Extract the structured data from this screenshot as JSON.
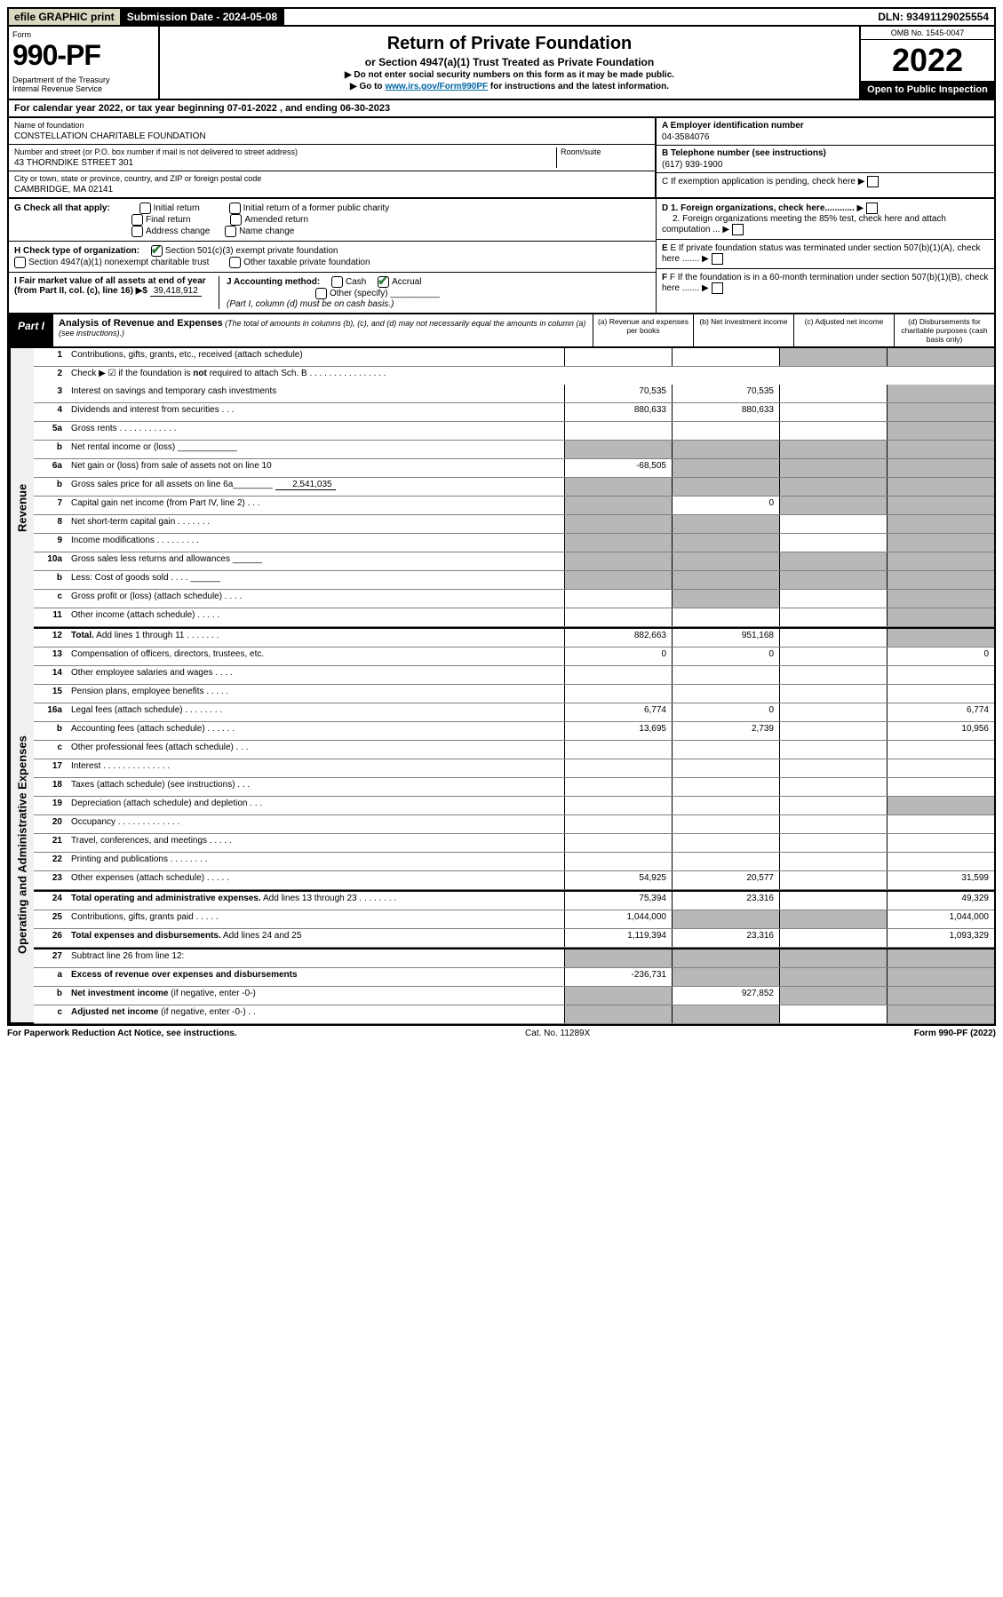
{
  "top": {
    "efile": "efile GRAPHIC print",
    "submission_label": "Submission Date - 2024-05-08",
    "dln": "DLN: 93491129025554"
  },
  "header": {
    "form_word": "Form",
    "form_number": "990-PF",
    "dept": "Department of the Treasury\nInternal Revenue Service",
    "title": "Return of Private Foundation",
    "subtitle": "or Section 4947(a)(1) Trust Treated as Private Foundation",
    "note1": "▶ Do not enter social security numbers on this form as it may be made public.",
    "note2_pre": "▶ Go to ",
    "note2_link": "www.irs.gov/Form990PF",
    "note2_post": " for instructions and the latest information.",
    "omb": "OMB No. 1545-0047",
    "year": "2022",
    "open": "Open to Public Inspection"
  },
  "cal_year": "For calendar year 2022, or tax year beginning 07-01-2022               , and ending 06-30-2023",
  "name_block": {
    "name_label": "Name of foundation",
    "name_val": "CONSTELLATION CHARITABLE FOUNDATION",
    "addr_label": "Number and street (or P.O. box number if mail is not delivered to street address)",
    "addr_val": "43 THORNDIKE STREET 301",
    "room_label": "Room/suite",
    "city_label": "City or town, state or province, country, and ZIP or foreign postal code",
    "city_val": "CAMBRIDGE, MA  02141"
  },
  "right_block": {
    "a_label": "A Employer identification number",
    "a_val": "04-3584076",
    "b_label": "B Telephone number (see instructions)",
    "b_val": "(617) 939-1900",
    "c_label": "C If exemption application is pending, check here",
    "d1": "D 1. Foreign organizations, check here............",
    "d2": "2. Foreign organizations meeting the 85% test, check here and attach computation ...",
    "e": "E If private foundation status was terminated under section 507(b)(1)(A), check here .......",
    "f": "F If the foundation is in a 60-month termination under section 507(b)(1)(B), check here .......   ▶"
  },
  "checks": {
    "G": "G Check all that apply:",
    "g_opts": [
      "Initial return",
      "Final return",
      "Address change",
      "Initial return of a former public charity",
      "Amended return",
      "Name change"
    ],
    "H": "H Check type of organization:",
    "h1": "Section 501(c)(3) exempt private foundation",
    "h2": "Section 4947(a)(1) nonexempt charitable trust",
    "h3": "Other taxable private foundation",
    "I": "I Fair market value of all assets at end of year (from Part II, col. (c), line 16) ▶$",
    "I_val": "39,418,912",
    "J": "J Accounting method:",
    "j_cash": "Cash",
    "j_accrual": "Accrual",
    "j_other": "Other (specify)",
    "j_note": "(Part I, column (d) must be on cash basis.)"
  },
  "part1": {
    "label": "Part I",
    "title": "Analysis of Revenue and Expenses",
    "desc": " (The total of amounts in columns (b), (c), and (d) may not necessarily equal the amounts in column (a) (see instructions).)",
    "cols": {
      "a": "(a) Revenue and expenses per books",
      "b": "(b) Net investment income",
      "c": "(c) Adjusted net income",
      "d": "(d) Disbursements for charitable purposes (cash basis only)"
    }
  },
  "rows": [
    {
      "n": "1",
      "label": "Contributions, gifts, grants, etc., received (attach schedule)",
      "a": "",
      "b": "",
      "c": "s",
      "d": "s"
    },
    {
      "n": "2",
      "label": "Check ▶ ☑ if the foundation is <b>not</b> required to attach Sch. B  .  .  .  .  .  .  .  .  .  .  .  .  .  .  .  .",
      "noborder": true
    },
    {
      "n": "3",
      "label": "Interest on savings and temporary cash investments",
      "a": "70,535",
      "b": "70,535",
      "c": "",
      "d": "s"
    },
    {
      "n": "4",
      "label": "Dividends and interest from securities  .  .  .",
      "a": "880,633",
      "b": "880,633",
      "c": "",
      "d": "s"
    },
    {
      "n": "5a",
      "label": "Gross rents  .  .  .  .  .  .  .  .  .  .  .  .",
      "a": "",
      "b": "",
      "c": "",
      "d": "s"
    },
    {
      "n": "b",
      "label": "Net rental income or (loss) ____________",
      "a": "s",
      "b": "s",
      "c": "s",
      "d": "s"
    },
    {
      "n": "6a",
      "label": "Net gain or (loss) from sale of assets not on line 10",
      "a": "-68,505",
      "b": "s",
      "c": "s",
      "d": "s"
    },
    {
      "n": "b",
      "label": "Gross sales price for all assets on line 6a________ <span class='inline-fill'>2,541,035</span>",
      "a": "s",
      "b": "s",
      "c": "s",
      "d": "s"
    },
    {
      "n": "7",
      "label": "Capital gain net income (from Part IV, line 2)  .  .  .",
      "a": "s",
      "b": "0",
      "c": "s",
      "d": "s"
    },
    {
      "n": "8",
      "label": "Net short-term capital gain  .  .  .  .  .  .  .",
      "a": "s",
      "b": "s",
      "c": "",
      "d": "s"
    },
    {
      "n": "9",
      "label": "Income modifications  .  .  .  .  .  .  .  .  .",
      "a": "s",
      "b": "s",
      "c": "",
      "d": "s"
    },
    {
      "n": "10a",
      "label": "Gross sales less returns and allowances  ______",
      "a": "s",
      "b": "s",
      "c": "s",
      "d": "s"
    },
    {
      "n": "b",
      "label": "Less: Cost of goods sold  .  .  .  .  ______",
      "a": "s",
      "b": "s",
      "c": "s",
      "d": "s"
    },
    {
      "n": "c",
      "label": "Gross profit or (loss) (attach schedule)  .  .  .  .",
      "a": "",
      "b": "s",
      "c": "",
      "d": "s"
    },
    {
      "n": "11",
      "label": "Other income (attach schedule)  .  .  .  .  .",
      "a": "",
      "b": "",
      "c": "",
      "d": "s"
    },
    {
      "n": "12",
      "label": "<b>Total.</b> Add lines 1 through 11  .  .  .  .  .  .  .",
      "a": "882,663",
      "b": "951,168",
      "c": "",
      "d": "s",
      "break": true
    },
    {
      "n": "13",
      "label": "Compensation of officers, directors, trustees, etc.",
      "a": "0",
      "b": "0",
      "c": "",
      "d": "0",
      "sec": "exp"
    },
    {
      "n": "14",
      "label": "Other employee salaries and wages  .  .  .  .",
      "a": "",
      "b": "",
      "c": "",
      "d": ""
    },
    {
      "n": "15",
      "label": "Pension plans, employee benefits  .  .  .  .  .",
      "a": "",
      "b": "",
      "c": "",
      "d": ""
    },
    {
      "n": "16a",
      "label": "Legal fees (attach schedule)  .  .  .  .  .  .  .  .",
      "a": "6,774",
      "b": "0",
      "c": "",
      "d": "6,774"
    },
    {
      "n": "b",
      "label": "Accounting fees (attach schedule)  .  .  .  .  .  .",
      "a": "13,695",
      "b": "2,739",
      "c": "",
      "d": "10,956"
    },
    {
      "n": "c",
      "label": "Other professional fees (attach schedule)  .  .  .",
      "a": "",
      "b": "",
      "c": "",
      "d": ""
    },
    {
      "n": "17",
      "label": "Interest  .  .  .  .  .  .  .  .  .  .  .  .  .  .",
      "a": "",
      "b": "",
      "c": "",
      "d": ""
    },
    {
      "n": "18",
      "label": "Taxes (attach schedule) (see instructions)  .  .  .",
      "a": "",
      "b": "",
      "c": "",
      "d": ""
    },
    {
      "n": "19",
      "label": "Depreciation (attach schedule) and depletion  .  .  .",
      "a": "",
      "b": "",
      "c": "",
      "d": "s"
    },
    {
      "n": "20",
      "label": "Occupancy  .  .  .  .  .  .  .  .  .  .  .  .  .",
      "a": "",
      "b": "",
      "c": "",
      "d": ""
    },
    {
      "n": "21",
      "label": "Travel, conferences, and meetings  .  .  .  .  .",
      "a": "",
      "b": "",
      "c": "",
      "d": ""
    },
    {
      "n": "22",
      "label": "Printing and publications  .  .  .  .  .  .  .  .",
      "a": "",
      "b": "",
      "c": "",
      "d": ""
    },
    {
      "n": "23",
      "label": "Other expenses (attach schedule)  .  .  .  .  .",
      "a": "54,925",
      "b": "20,577",
      "c": "",
      "d": "31,599"
    },
    {
      "n": "24",
      "label": "<b>Total operating and administrative expenses.</b> Add lines 13 through 23  .  .  .  .  .  .  .  .",
      "a": "75,394",
      "b": "23,316",
      "c": "",
      "d": "49,329",
      "break": true
    },
    {
      "n": "25",
      "label": "Contributions, gifts, grants paid  .  .  .  .  .",
      "a": "1,044,000",
      "b": "s",
      "c": "s",
      "d": "1,044,000"
    },
    {
      "n": "26",
      "label": "<b>Total expenses and disbursements.</b> Add lines 24 and 25",
      "a": "1,119,394",
      "b": "23,316",
      "c": "",
      "d": "1,093,329"
    },
    {
      "n": "27",
      "label": "Subtract line 26 from line 12:",
      "a": "s",
      "b": "s",
      "c": "s",
      "d": "s",
      "break": true
    },
    {
      "n": "a",
      "label": "<b>Excess of revenue over expenses and disbursements</b>",
      "a": "-236,731",
      "b": "s",
      "c": "s",
      "d": "s"
    },
    {
      "n": "b",
      "label": "<b>Net investment income</b> (if negative, enter -0-)",
      "a": "s",
      "b": "927,852",
      "c": "s",
      "d": "s"
    },
    {
      "n": "c",
      "label": "<b>Adjusted net income</b> (if negative, enter -0-)  .  .",
      "a": "s",
      "b": "s",
      "c": "",
      "d": "s"
    }
  ],
  "side_labels": {
    "revenue": "Revenue",
    "expenses": "Operating and Administrative Expenses"
  },
  "footer": {
    "left": "For Paperwork Reduction Act Notice, see instructions.",
    "mid": "Cat. No. 11289X",
    "right": "Form 990-PF (2022)"
  }
}
